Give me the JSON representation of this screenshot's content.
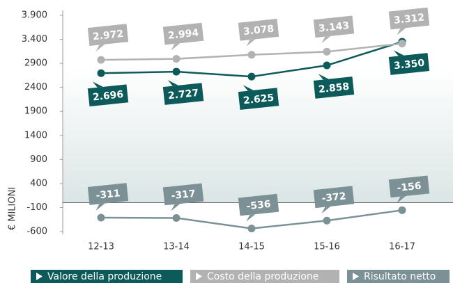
{
  "chart_data": {
    "type": "line",
    "y_label": "€ MILIONI",
    "categories": [
      "12-13",
      "13-14",
      "14-15",
      "15-16",
      "16-17"
    ],
    "series": [
      {
        "name": "Valore della produzione",
        "color": "#0d5a5a",
        "values": [
          2696,
          2727,
          2625,
          2858,
          3350
        ],
        "value_labels": [
          "2.696",
          "2.727",
          "2.625",
          "2.858",
          "3.350"
        ]
      },
      {
        "name": "Costo della produzione",
        "color": "#b2b2b2",
        "values": [
          2972,
          2994,
          3078,
          3143,
          3312
        ],
        "value_labels": [
          "2.972",
          "2.994",
          "3.078",
          "3.143",
          "3.312"
        ]
      },
      {
        "name": "Risultato netto",
        "color": "#7b9196",
        "values": [
          -311,
          -317,
          -536,
          -372,
          -156
        ]
      }
    ],
    "ylim": [
      -600,
      3900
    ],
    "yticks": [
      -600,
      -100,
      400,
      900,
      1400,
      1900,
      2400,
      2900,
      {
        "value": 3400,
        "label": "3.400"
      },
      {
        "value": 3900,
        "label": "3.900"
      }
    ]
  }
}
